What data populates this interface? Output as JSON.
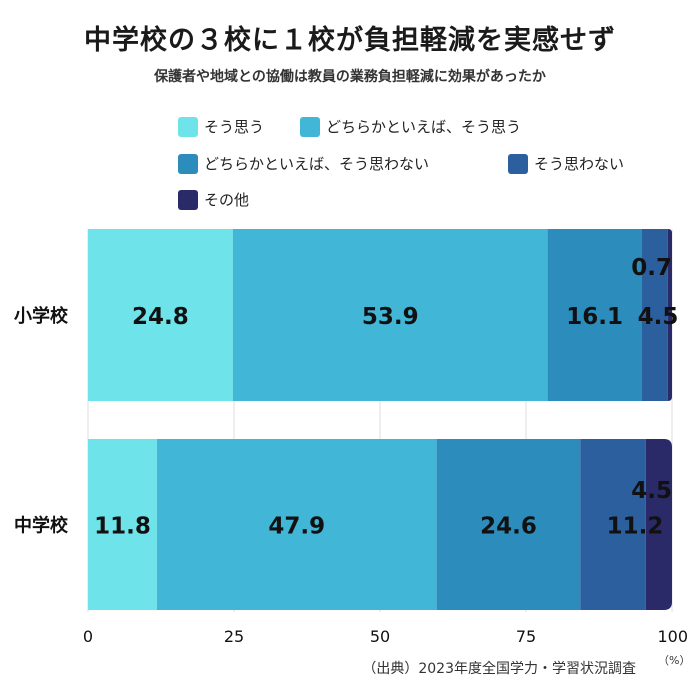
{
  "title": "中学校の３校に１校が負担軽減を実感せず",
  "subtitle": "保護者や地域との協働は教員の業務負担軽減に効果があったか",
  "source": "（出典）2023年度全国学力・学習状況調査",
  "unit": "（%）",
  "colors": [
    "#6ee3ea",
    "#41b6d6",
    "#2c8cbb",
    "#2c5f9e",
    "#2b2a68"
  ],
  "chart_data": {
    "type": "bar",
    "orientation": "horizontal",
    "stacked": true,
    "categories": [
      "小学校",
      "中学校"
    ],
    "series": [
      {
        "name": "そう思う",
        "values": [
          24.8,
          11.8
        ]
      },
      {
        "name": "どちらかといえば、そう思う",
        "values": [
          53.9,
          47.9
        ]
      },
      {
        "name": "どちらかといえば、そう思わない",
        "values": [
          16.1,
          24.6
        ]
      },
      {
        "name": "そう思わない",
        "values": [
          4.5,
          11.2
        ]
      },
      {
        "name": "その他",
        "values": [
          0.7,
          4.5
        ]
      }
    ],
    "xlim": [
      0,
      100
    ],
    "xticks": [
      "0",
      "25",
      "50",
      "75",
      "100"
    ],
    "grid": true,
    "legend": "top"
  }
}
